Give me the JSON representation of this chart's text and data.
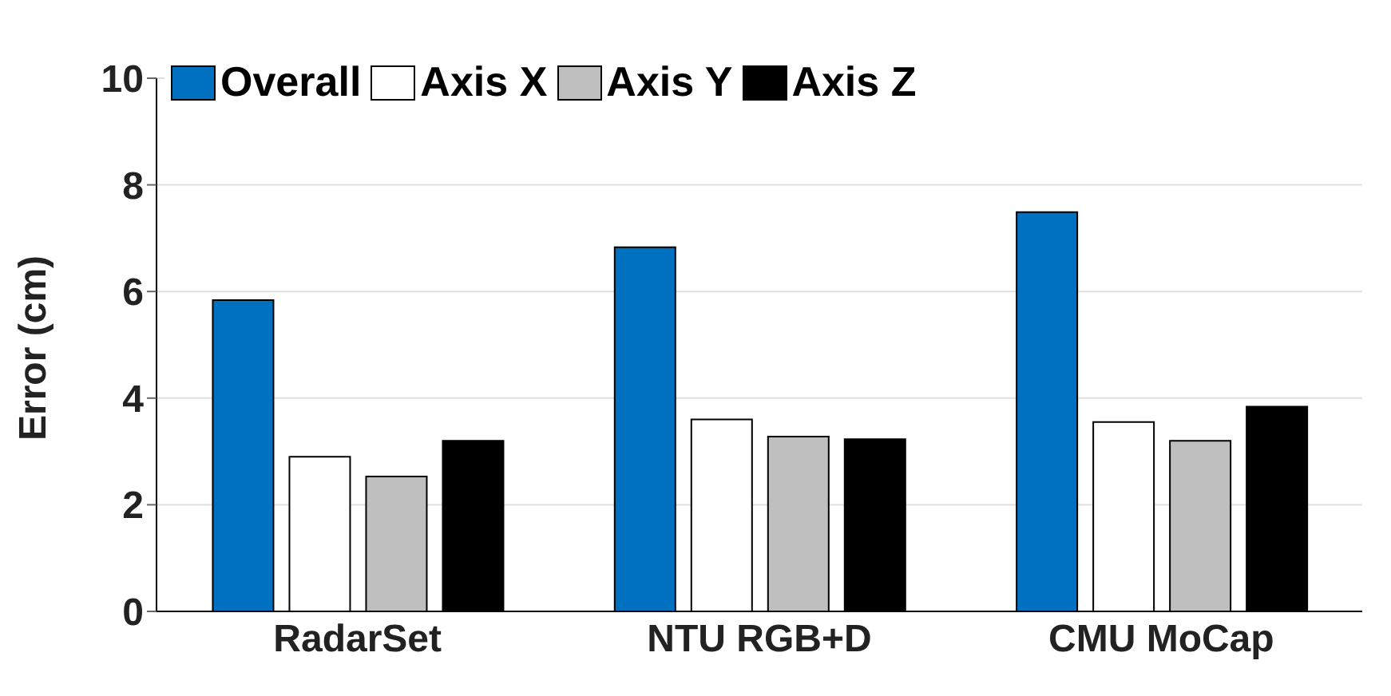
{
  "chart_data": {
    "type": "bar",
    "ylabel": "Error (cm)",
    "categories": [
      "RadarSet",
      "NTU RGB+D",
      "CMU MoCap"
    ],
    "series": [
      {
        "name": "Overall",
        "color": "#0070c0",
        "values": [
          5.84,
          6.83,
          7.49
        ]
      },
      {
        "name": "Axis X",
        "color": "#ffffff",
        "values": [
          2.9,
          3.6,
          3.55
        ]
      },
      {
        "name": "Axis Y",
        "color": "#bfbfbf",
        "values": [
          2.53,
          3.28,
          3.2
        ]
      },
      {
        "name": "Axis Z",
        "color": "#000000",
        "values": [
          3.2,
          3.23,
          3.84
        ]
      }
    ],
    "ylim": [
      0,
      10
    ],
    "yticks": [
      0,
      2,
      4,
      6,
      8,
      10
    ],
    "grid": "y",
    "legend": "top"
  }
}
